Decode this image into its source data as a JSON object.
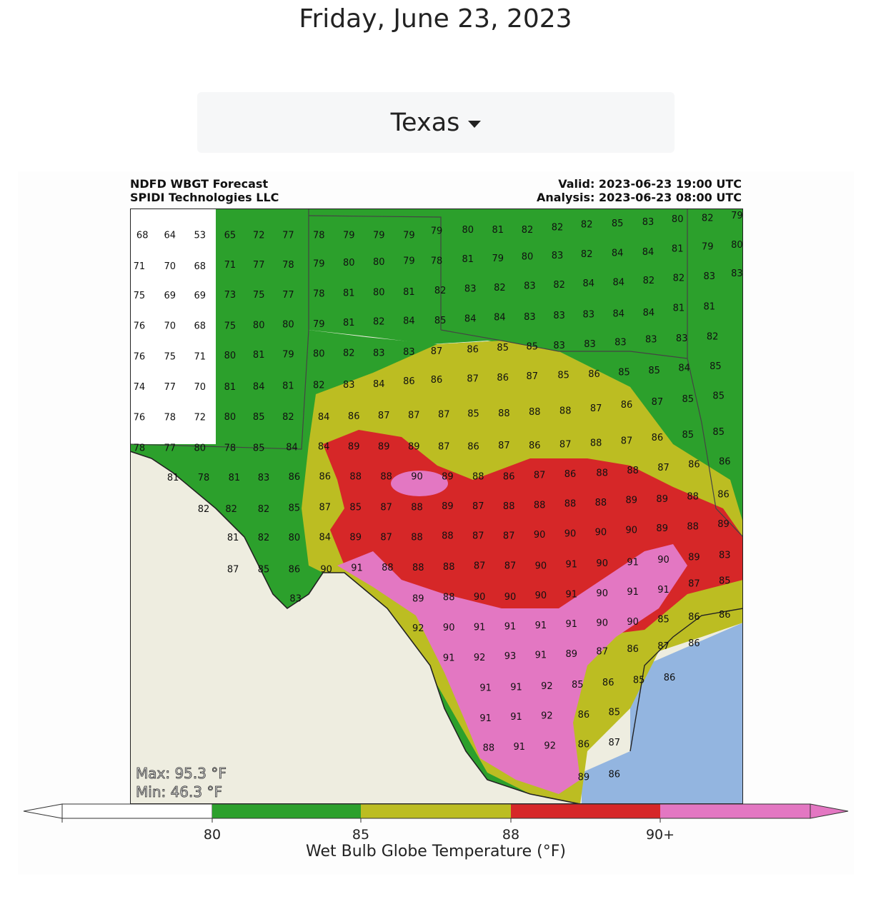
{
  "page": {
    "date": "Friday, June 23, 2023"
  },
  "region_selector": {
    "selected": "Texas"
  },
  "figure": {
    "title_left": [
      "NDFD WBGT Forecast",
      "SPIDI Technologies LLC"
    ],
    "title_right": [
      "Valid: 2023-06-23 19:00 UTC",
      "Analysis: 2023-06-23 08:00 UTC"
    ],
    "max_label": "Max: 95.3 °F",
    "min_label": "Min: 46.3 °F",
    "colorbar": {
      "title": "Wet Bulb Globe Temperature (°F)",
      "ticks": [
        "80",
        "85",
        "88",
        "90+"
      ],
      "colors": [
        "#ffffff",
        "#2ca02c",
        "#bcbd22",
        "#d62728",
        "#e377c2"
      ]
    },
    "colors": {
      "land_outside": "#eeede0",
      "water": "#93b5e0",
      "border": "#333333",
      "county": "#aaaaaa"
    },
    "station_values": [
      [
        "68",
        0.02,
        0.045
      ],
      [
        "64",
        0.065,
        0.045
      ],
      [
        "53",
        0.114,
        0.045
      ],
      [
        "65",
        0.163,
        0.045
      ],
      [
        "72",
        0.21,
        0.045
      ],
      [
        "77",
        0.258,
        0.045
      ],
      [
        "78",
        0.308,
        0.045
      ],
      [
        "79",
        0.357,
        0.045
      ],
      [
        "79",
        0.406,
        0.045
      ],
      [
        "79",
        0.455,
        0.045
      ],
      [
        "79",
        0.5,
        0.038
      ],
      [
        "80",
        0.551,
        0.036
      ],
      [
        "81",
        0.6,
        0.036
      ],
      [
        "82",
        0.648,
        0.036
      ],
      [
        "82",
        0.697,
        0.032
      ],
      [
        "82",
        0.745,
        0.027
      ],
      [
        "85",
        0.795,
        0.025
      ],
      [
        "83",
        0.845,
        0.023
      ],
      [
        "80",
        0.893,
        0.018
      ],
      [
        "82",
        0.942,
        0.016
      ],
      [
        "79",
        0.99,
        0.012
      ],
      [
        "71",
        0.015,
        0.097
      ],
      [
        "70",
        0.065,
        0.097
      ],
      [
        "68",
        0.114,
        0.097
      ],
      [
        "71",
        0.163,
        0.095
      ],
      [
        "77",
        0.21,
        0.095
      ],
      [
        "78",
        0.258,
        0.095
      ],
      [
        "79",
        0.308,
        0.093
      ],
      [
        "80",
        0.357,
        0.091
      ],
      [
        "80",
        0.406,
        0.09
      ],
      [
        "79",
        0.455,
        0.088
      ],
      [
        "78",
        0.5,
        0.088
      ],
      [
        "81",
        0.551,
        0.085
      ],
      [
        "79",
        0.6,
        0.084
      ],
      [
        "80",
        0.648,
        0.081
      ],
      [
        "83",
        0.697,
        0.079
      ],
      [
        "82",
        0.745,
        0.077
      ],
      [
        "84",
        0.795,
        0.075
      ],
      [
        "84",
        0.845,
        0.073
      ],
      [
        "81",
        0.893,
        0.068
      ],
      [
        "79",
        0.942,
        0.064
      ],
      [
        "80",
        0.99,
        0.061
      ],
      [
        "75",
        0.015,
        0.146
      ],
      [
        "69",
        0.065,
        0.146
      ],
      [
        "69",
        0.114,
        0.146
      ],
      [
        "73",
        0.163,
        0.145
      ],
      [
        "75",
        0.21,
        0.145
      ],
      [
        "77",
        0.258,
        0.145
      ],
      [
        "78",
        0.308,
        0.143
      ],
      [
        "81",
        0.357,
        0.142
      ],
      [
        "80",
        0.406,
        0.141
      ],
      [
        "81",
        0.455,
        0.14
      ],
      [
        "82",
        0.506,
        0.138
      ],
      [
        "83",
        0.555,
        0.135
      ],
      [
        "82",
        0.603,
        0.133
      ],
      [
        "83",
        0.652,
        0.13
      ],
      [
        "82",
        0.7,
        0.128
      ],
      [
        "84",
        0.748,
        0.126
      ],
      [
        "84",
        0.797,
        0.124
      ],
      [
        "82",
        0.846,
        0.121
      ],
      [
        "82",
        0.895,
        0.117
      ],
      [
        "83",
        0.945,
        0.114
      ],
      [
        "83",
        0.99,
        0.109
      ],
      [
        "76",
        0.015,
        0.197
      ],
      [
        "70",
        0.065,
        0.197
      ],
      [
        "68",
        0.114,
        0.197
      ],
      [
        "75",
        0.163,
        0.197
      ],
      [
        "80",
        0.21,
        0.196
      ],
      [
        "80",
        0.258,
        0.195
      ],
      [
        "79",
        0.308,
        0.194
      ],
      [
        "81",
        0.357,
        0.192
      ],
      [
        "82",
        0.406,
        0.19
      ],
      [
        "84",
        0.455,
        0.189
      ],
      [
        "85",
        0.506,
        0.188
      ],
      [
        "84",
        0.555,
        0.185
      ],
      [
        "84",
        0.603,
        0.183
      ],
      [
        "83",
        0.652,
        0.182
      ],
      [
        "83",
        0.7,
        0.18
      ],
      [
        "83",
        0.748,
        0.178
      ],
      [
        "84",
        0.797,
        0.177
      ],
      [
        "84",
        0.846,
        0.175
      ],
      [
        "81",
        0.895,
        0.167
      ],
      [
        "81",
        0.945,
        0.165
      ],
      [
        "76",
        0.015,
        0.249
      ],
      [
        "75",
        0.065,
        0.249
      ],
      [
        "71",
        0.114,
        0.249
      ],
      [
        "80",
        0.163,
        0.247
      ],
      [
        "81",
        0.21,
        0.246
      ],
      [
        "79",
        0.258,
        0.245
      ],
      [
        "80",
        0.308,
        0.244
      ],
      [
        "82",
        0.357,
        0.243
      ],
      [
        "83",
        0.406,
        0.243
      ],
      [
        "83",
        0.455,
        0.241
      ],
      [
        "87",
        0.5,
        0.24
      ],
      [
        "86",
        0.559,
        0.237
      ],
      [
        "85",
        0.608,
        0.234
      ],
      [
        "85",
        0.656,
        0.232
      ],
      [
        "83",
        0.7,
        0.23
      ],
      [
        "83",
        0.75,
        0.228
      ],
      [
        "83",
        0.8,
        0.225
      ],
      [
        "83",
        0.85,
        0.22
      ],
      [
        "83",
        0.9,
        0.218
      ],
      [
        "82",
        0.95,
        0.215
      ],
      [
        "74",
        0.015,
        0.3
      ],
      [
        "77",
        0.065,
        0.3
      ],
      [
        "70",
        0.114,
        0.3
      ],
      [
        "81",
        0.163,
        0.3
      ],
      [
        "84",
        0.21,
        0.299
      ],
      [
        "81",
        0.258,
        0.298
      ],
      [
        "82",
        0.308,
        0.297
      ],
      [
        "83",
        0.357,
        0.296
      ],
      [
        "84",
        0.406,
        0.295
      ],
      [
        "86",
        0.455,
        0.29
      ],
      [
        "86",
        0.5,
        0.288
      ],
      [
        "87",
        0.559,
        0.286
      ],
      [
        "86",
        0.608,
        0.284
      ],
      [
        "87",
        0.656,
        0.282
      ],
      [
        "85",
        0.707,
        0.28
      ],
      [
        "86",
        0.757,
        0.278
      ],
      [
        "85",
        0.806,
        0.275
      ],
      [
        "85",
        0.855,
        0.272
      ],
      [
        "84",
        0.904,
        0.268
      ],
      [
        "85",
        0.955,
        0.265
      ],
      [
        "76",
        0.015,
        0.351
      ],
      [
        "78",
        0.065,
        0.351
      ],
      [
        "72",
        0.114,
        0.351
      ],
      [
        "80",
        0.163,
        0.35
      ],
      [
        "85",
        0.21,
        0.35
      ],
      [
        "82",
        0.258,
        0.35
      ],
      [
        "84",
        0.316,
        0.35
      ],
      [
        "86",
        0.365,
        0.349
      ],
      [
        "87",
        0.414,
        0.348
      ],
      [
        "87",
        0.463,
        0.347
      ],
      [
        "87",
        0.512,
        0.346
      ],
      [
        "85",
        0.56,
        0.345
      ],
      [
        "88",
        0.61,
        0.344
      ],
      [
        "88",
        0.66,
        0.342
      ],
      [
        "88",
        0.71,
        0.34
      ],
      [
        "87",
        0.76,
        0.336
      ],
      [
        "86",
        0.81,
        0.33
      ],
      [
        "87",
        0.86,
        0.325
      ],
      [
        "85",
        0.91,
        0.32
      ],
      [
        "85",
        0.96,
        0.315
      ],
      [
        "78",
        0.015,
        0.402
      ],
      [
        "77",
        0.065,
        0.402
      ],
      [
        "80",
        0.114,
        0.402
      ],
      [
        "78",
        0.163,
        0.402
      ],
      [
        "85",
        0.21,
        0.402
      ],
      [
        "84",
        0.264,
        0.401
      ],
      [
        "84",
        0.316,
        0.4
      ],
      [
        "89",
        0.365,
        0.4
      ],
      [
        "89",
        0.414,
        0.4
      ],
      [
        "89",
        0.463,
        0.4
      ],
      [
        "87",
        0.512,
        0.4
      ],
      [
        "86",
        0.56,
        0.4
      ],
      [
        "87",
        0.61,
        0.398
      ],
      [
        "86",
        0.66,
        0.398
      ],
      [
        "87",
        0.71,
        0.396
      ],
      [
        "88",
        0.76,
        0.394
      ],
      [
        "87",
        0.81,
        0.39
      ],
      [
        "86",
        0.86,
        0.385
      ],
      [
        "85",
        0.91,
        0.38
      ],
      [
        "85",
        0.96,
        0.375
      ],
      [
        "81",
        0.07,
        0.452
      ],
      [
        "78",
        0.12,
        0.452
      ],
      [
        "81",
        0.17,
        0.452
      ],
      [
        "83",
        0.218,
        0.452
      ],
      [
        "86",
        0.268,
        0.451
      ],
      [
        "86",
        0.318,
        0.45
      ],
      [
        "88",
        0.368,
        0.45
      ],
      [
        "88",
        0.418,
        0.45
      ],
      [
        "90",
        0.468,
        0.45
      ],
      [
        "89",
        0.518,
        0.45
      ],
      [
        "88",
        0.568,
        0.45
      ],
      [
        "86",
        0.618,
        0.45
      ],
      [
        "87",
        0.668,
        0.448
      ],
      [
        "86",
        0.718,
        0.446
      ],
      [
        "88",
        0.77,
        0.444
      ],
      [
        "88",
        0.82,
        0.44
      ],
      [
        "87",
        0.87,
        0.435
      ],
      [
        "86",
        0.92,
        0.43
      ],
      [
        "86",
        0.97,
        0.425
      ],
      [
        "82",
        0.12,
        0.505
      ],
      [
        "82",
        0.165,
        0.505
      ],
      [
        "82",
        0.218,
        0.505
      ],
      [
        "85",
        0.268,
        0.503
      ],
      [
        "87",
        0.318,
        0.502
      ],
      [
        "85",
        0.368,
        0.502
      ],
      [
        "87",
        0.418,
        0.502
      ],
      [
        "88",
        0.468,
        0.502
      ],
      [
        "89",
        0.518,
        0.5
      ],
      [
        "87",
        0.568,
        0.5
      ],
      [
        "88",
        0.618,
        0.5
      ],
      [
        "88",
        0.668,
        0.498
      ],
      [
        "88",
        0.718,
        0.496
      ],
      [
        "88",
        0.768,
        0.494
      ],
      [
        "89",
        0.818,
        0.49
      ],
      [
        "89",
        0.868,
        0.488
      ],
      [
        "88",
        0.918,
        0.484
      ],
      [
        "86",
        0.968,
        0.48
      ],
      [
        "81",
        0.168,
        0.553
      ],
      [
        "82",
        0.218,
        0.553
      ],
      [
        "80",
        0.268,
        0.553
      ],
      [
        "84",
        0.318,
        0.552
      ],
      [
        "89",
        0.368,
        0.552
      ],
      [
        "87",
        0.418,
        0.552
      ],
      [
        "88",
        0.468,
        0.552
      ],
      [
        "88",
        0.518,
        0.55
      ],
      [
        "87",
        0.568,
        0.55
      ],
      [
        "87",
        0.618,
        0.55
      ],
      [
        "90",
        0.668,
        0.548
      ],
      [
        "90",
        0.718,
        0.546
      ],
      [
        "90",
        0.768,
        0.544
      ],
      [
        "90",
        0.818,
        0.54
      ],
      [
        "89",
        0.868,
        0.537
      ],
      [
        "88",
        0.918,
        0.534
      ],
      [
        "89",
        0.968,
        0.53
      ],
      [
        "87",
        0.168,
        0.606
      ],
      [
        "85",
        0.218,
        0.606
      ],
      [
        "86",
        0.268,
        0.606
      ],
      [
        "90",
        0.32,
        0.606
      ],
      [
        "91",
        0.37,
        0.604
      ],
      [
        "88",
        0.42,
        0.603
      ],
      [
        "88",
        0.47,
        0.603
      ],
      [
        "88",
        0.52,
        0.602
      ],
      [
        "87",
        0.57,
        0.6
      ],
      [
        "87",
        0.62,
        0.6
      ],
      [
        "90",
        0.67,
        0.6
      ],
      [
        "91",
        0.72,
        0.598
      ],
      [
        "90",
        0.77,
        0.596
      ],
      [
        "91",
        0.82,
        0.594
      ],
      [
        "90",
        0.87,
        0.59
      ],
      [
        "89",
        0.92,
        0.586
      ],
      [
        "83",
        0.97,
        0.582
      ],
      [
        "83",
        0.27,
        0.655
      ],
      [
        "89",
        0.47,
        0.655
      ],
      [
        "88",
        0.52,
        0.653
      ],
      [
        "90",
        0.57,
        0.652
      ],
      [
        "90",
        0.62,
        0.652
      ],
      [
        "90",
        0.67,
        0.65
      ],
      [
        "91",
        0.72,
        0.648
      ],
      [
        "90",
        0.77,
        0.646
      ],
      [
        "91",
        0.82,
        0.644
      ],
      [
        "91",
        0.87,
        0.64
      ],
      [
        "87",
        0.92,
        0.63
      ],
      [
        "85",
        0.97,
        0.625
      ],
      [
        "92",
        0.47,
        0.705
      ],
      [
        "90",
        0.52,
        0.704
      ],
      [
        "91",
        0.57,
        0.703
      ],
      [
        "91",
        0.62,
        0.702
      ],
      [
        "91",
        0.67,
        0.7
      ],
      [
        "91",
        0.72,
        0.698
      ],
      [
        "90",
        0.77,
        0.696
      ],
      [
        "90",
        0.82,
        0.694
      ],
      [
        "85",
        0.87,
        0.69
      ],
      [
        "86",
        0.92,
        0.686
      ],
      [
        "86",
        0.97,
        0.682
      ],
      [
        "91",
        0.52,
        0.755
      ],
      [
        "92",
        0.57,
        0.754
      ],
      [
        "93",
        0.62,
        0.752
      ],
      [
        "91",
        0.67,
        0.75
      ],
      [
        "89",
        0.72,
        0.748
      ],
      [
        "87",
        0.77,
        0.744
      ],
      [
        "86",
        0.82,
        0.74
      ],
      [
        "87",
        0.87,
        0.735
      ],
      [
        "86",
        0.92,
        0.73
      ],
      [
        "91",
        0.58,
        0.805
      ],
      [
        "91",
        0.63,
        0.804
      ],
      [
        "92",
        0.68,
        0.802
      ],
      [
        "85",
        0.73,
        0.8
      ],
      [
        "86",
        0.78,
        0.796
      ],
      [
        "85",
        0.83,
        0.792
      ],
      [
        "86",
        0.88,
        0.788
      ],
      [
        "91",
        0.58,
        0.856
      ],
      [
        "91",
        0.63,
        0.854
      ],
      [
        "92",
        0.68,
        0.852
      ],
      [
        "86",
        0.74,
        0.85
      ],
      [
        "85",
        0.79,
        0.846
      ],
      [
        "88",
        0.585,
        0.906
      ],
      [
        "91",
        0.635,
        0.904
      ],
      [
        "92",
        0.685,
        0.902
      ],
      [
        "86",
        0.74,
        0.9
      ],
      [
        "87",
        0.79,
        0.897
      ],
      [
        "89",
        0.74,
        0.955
      ],
      [
        "86",
        0.79,
        0.95
      ]
    ]
  }
}
